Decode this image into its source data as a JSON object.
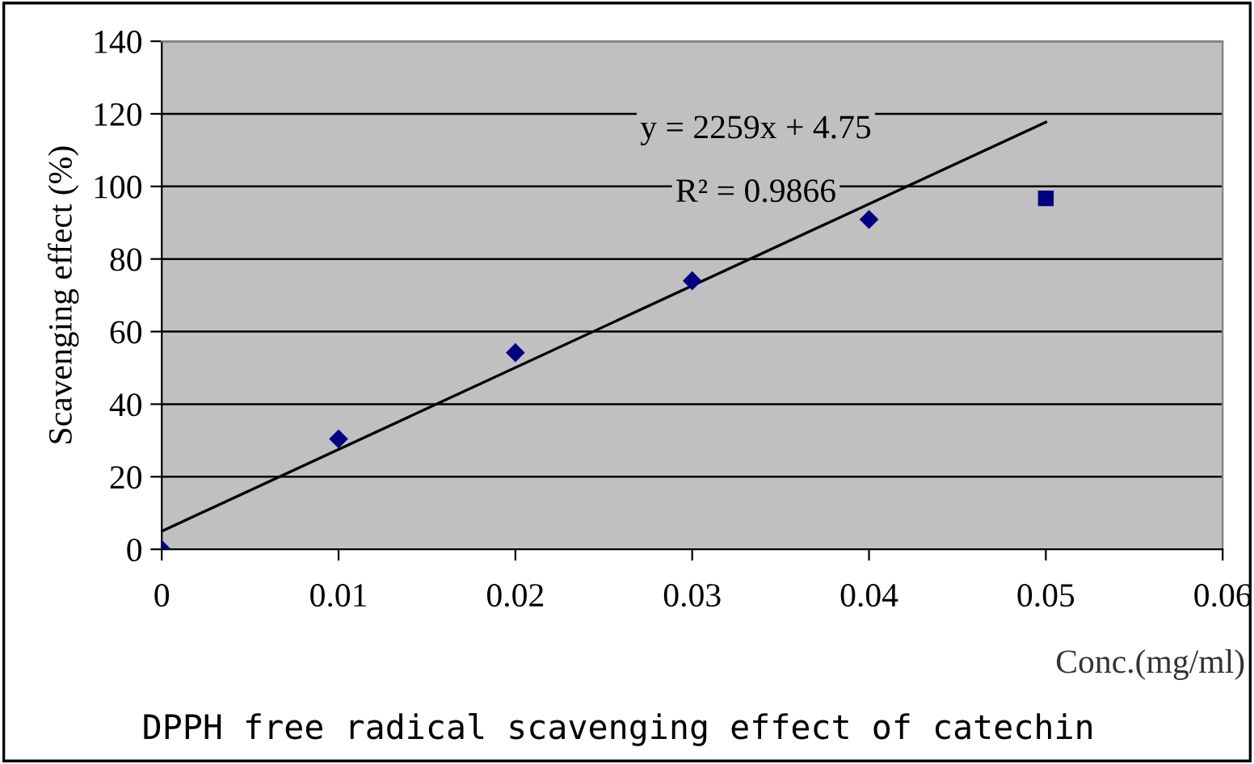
{
  "chart_data": {
    "type": "scatter",
    "title": "DPPH free radical scavenging effect of catechin",
    "xlabel": "Conc.(mg/ml)",
    "ylabel": "Scavenging effect (%)",
    "series": [
      {
        "color": "#000080",
        "marker": "diamond",
        "x": [
          0,
          0.01,
          0.02,
          0.03,
          0.04
        ],
        "values": [
          0,
          30.4,
          54.2,
          74,
          90.9
        ]
      },
      {
        "color": "#000080",
        "marker": "square",
        "x": [
          0.05
        ],
        "values": [
          96.7
        ]
      },
      {
        "type": "line",
        "color": "#000000",
        "marker": "none",
        "x": [
          0,
          0.05
        ],
        "values": [
          5,
          117.7
        ]
      }
    ],
    "annotations": [
      "y = 2259x + 4.75",
      "R² = 0.9866"
    ],
    "xlim": [
      0,
      0.06
    ],
    "xticks": [
      0,
      0.01,
      0.02,
      0.03,
      0.04,
      0.05,
      0.06
    ],
    "ylim": [
      0,
      140
    ],
    "yticks": [
      0,
      20,
      40,
      60,
      80,
      100,
      120,
      140
    ],
    "grid": "y",
    "legend": false
  }
}
